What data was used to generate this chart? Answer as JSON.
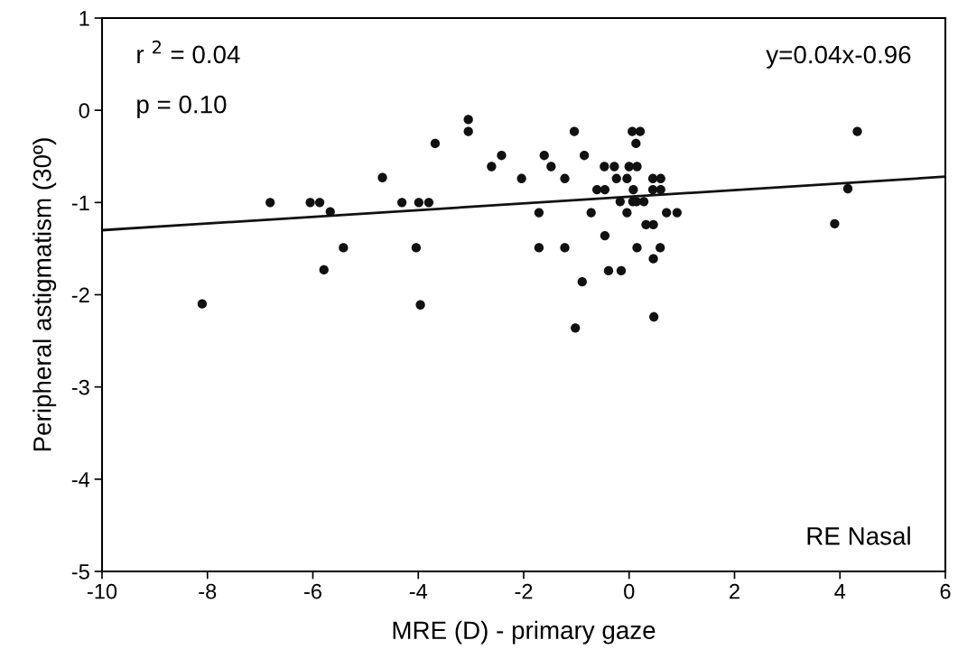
{
  "chart_data": {
    "type": "scatter",
    "xlabel": "MRE (D) - primary gaze",
    "ylabel": "Peripheral astigmatism (30º)",
    "xlim": [
      -10,
      6
    ],
    "xticks": [
      -10,
      -8,
      -6,
      -4,
      -2,
      0,
      2,
      4,
      6
    ],
    "ylim": [
      -5,
      1
    ],
    "yticks": [
      -5,
      -4,
      -3,
      -2,
      -1,
      0,
      1
    ],
    "grid": false,
    "legend": false,
    "marker": "circle",
    "annotations": [
      "r $^{2}$ = 0.04",
      "p = 0.10",
      "y=0.04x-0.96",
      "RE Nasal"
    ],
    "series": [
      {
        "color": "#111111",
        "x": [
          -8.1,
          -6.81,
          -6.05,
          -5.87,
          -5.67,
          -5.42,
          -5.79,
          -4.68,
          -4.31,
          -3.99,
          -3.8,
          -4.04,
          -3.96,
          -3.68,
          -3.05,
          -3.05,
          -2.61,
          -2.42,
          -1.04,
          -1.61,
          -0.85,
          -1.48,
          -2.04,
          -1.22,
          -0.47,
          -0.28,
          0.06,
          0.21,
          0.13,
          0.0,
          0.15,
          -0.24,
          -0.04,
          0.45,
          0.6,
          -0.61,
          -0.46,
          0.08,
          0.45,
          0.6,
          -0.17,
          0.07,
          0.14,
          0.28,
          -1.71,
          -0.72,
          -0.04,
          0.71,
          0.91,
          0.32,
          0.46,
          -0.46,
          -1.71,
          -1.22,
          0.15,
          0.59,
          0.46,
          -0.39,
          -0.15,
          -0.89,
          0.47,
          -1.02,
          4.33,
          4.15,
          3.9
        ],
        "values": [
          -2.1,
          -1.0,
          -1.0,
          -1.0,
          -1.1,
          -1.49,
          -1.73,
          -0.73,
          -1.0,
          -1.0,
          -1.0,
          -1.49,
          -2.11,
          -0.36,
          -0.1,
          -0.23,
          -0.61,
          -0.49,
          -0.23,
          -0.49,
          -0.49,
          -0.61,
          -0.74,
          -0.74,
          -0.61,
          -0.61,
          -0.23,
          -0.23,
          -0.36,
          -0.61,
          -0.61,
          -0.74,
          -0.74,
          -0.74,
          -0.74,
          -0.86,
          -0.86,
          -0.86,
          -0.86,
          -0.86,
          -0.99,
          -0.99,
          -0.99,
          -0.99,
          -1.11,
          -1.11,
          -1.11,
          -1.11,
          -1.11,
          -1.24,
          -1.24,
          -1.36,
          -1.49,
          -1.49,
          -1.49,
          -1.49,
          -1.61,
          -1.74,
          -1.74,
          -1.86,
          -2.24,
          -2.36,
          -0.23,
          -0.85,
          -1.23
        ]
      },
      {
        "type": "line",
        "color": "#111111",
        "x": [
          -10,
          6
        ],
        "values": [
          -1.3,
          -0.72
        ],
        "marker": "none",
        "line_style": "solid"
      }
    ]
  }
}
